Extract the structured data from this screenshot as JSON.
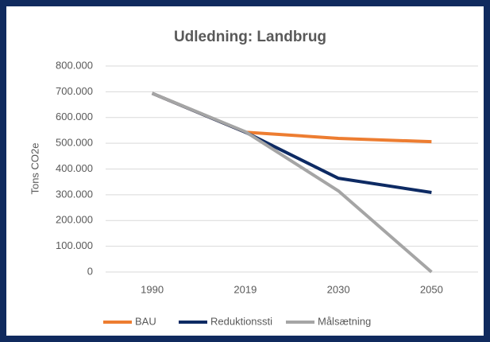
{
  "chart_data": {
    "type": "line",
    "title": "Udledning: Landbrug",
    "y_axis_label": "Tons CO2e",
    "categories": [
      "1990",
      "2019",
      "2030",
      "2050"
    ],
    "series": [
      {
        "name": "BAU",
        "color": "#ed7d31",
        "values": [
          694000,
          543000,
          519000,
          506000
        ]
      },
      {
        "name": "Reduktionssti",
        "color": "#0d2a63",
        "values": [
          694000,
          543000,
          364000,
          309000
        ]
      },
      {
        "name": "Målsætning",
        "color": "#a5a5a5",
        "values": [
          694000,
          545000,
          315000,
          0
        ]
      }
    ],
    "ylim": [
      0,
      800000
    ],
    "yticks": [
      0,
      {
        "value": 100000,
        "label": "100.000"
      },
      {
        "value": 200000,
        "label": "200.000"
      },
      {
        "value": 300000,
        "label": "300.000"
      },
      {
        "value": 400000,
        "label": "400.000"
      },
      {
        "value": 500000,
        "label": "500.000"
      },
      {
        "value": 600000,
        "label": "600.000"
      },
      {
        "value": 700000,
        "label": "700.000"
      },
      {
        "value": 800000,
        "label": "800.000"
      }
    ],
    "grid": true,
    "legend": "bottom"
  }
}
